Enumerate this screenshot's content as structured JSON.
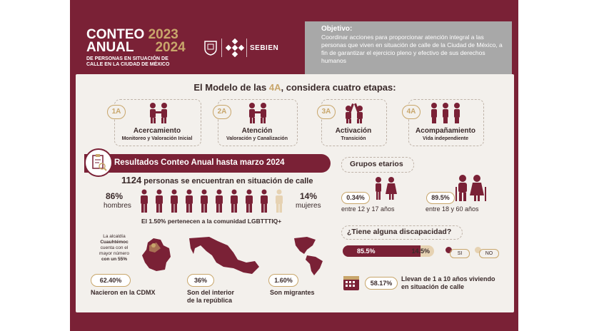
{
  "header": {
    "title_line1": "CONTEO",
    "title_line2": "ANUAL",
    "year1": "2023",
    "year2": "2024",
    "subtitle_line1": "DE PERSONAS EN SITUACIÓN DE",
    "subtitle_line2": "CALLE EN LA CIUDAD DE MÉXICO",
    "logo_text": "SEBIEN"
  },
  "objective": {
    "label": "Objetivo:",
    "text": "Coordinar acciones para proporcionar atención integral a las personas que viven en situación de calle de la Ciudad de México, a fin de garantizar el ejercicio pleno y efectivo de sus derechos humanos"
  },
  "model": {
    "title_pre": "El Modelo de las ",
    "title_hl": "4A",
    "title_post": ", considera cuatro etapas:",
    "stages": [
      {
        "badge": "1A",
        "title": "Acercamiento",
        "sub": "Monitoreo y Valoración Inicial"
      },
      {
        "badge": "2A",
        "title": "Atención",
        "sub": "Valoración y Canalización"
      },
      {
        "badge": "3A",
        "title": "Activación",
        "sub": "Transición"
      },
      {
        "badge": "4A",
        "title": "Acompañamiento",
        "sub": "Vida independiente"
      }
    ]
  },
  "results": {
    "title": "Resultados Conteo Anual hasta marzo 2024",
    "count": "1124",
    "count_text": "personas se encuentran en situación de calle",
    "men_pct": "86%",
    "men_label": "hombres",
    "women_pct": "14%",
    "women_label": "mujeres",
    "lgbt": "El 1.50% pertenecen a la comunidad LGBTTTIQ+",
    "men_share": 0.86
  },
  "map": {
    "note_line1": "La alcaldía",
    "note_line2": "Cuauhtémoc",
    "note_line3": "cuenta con el",
    "note_line4": "mayor número",
    "note_line5": "con un 55%",
    "cdmx_pct": "62.40%",
    "cdmx_label": "Nacieron en la CDMX",
    "interior_pct": "36%",
    "interior_label_1": "Son del interior",
    "interior_label_2": "de la república",
    "migrant_pct": "1.60%",
    "migrant_label": "Son migrantes"
  },
  "age": {
    "title": "Grupos etarios",
    "young_pct": "0.34%",
    "young_label": "entre 12 y 17 años",
    "adult_pct": "89.5%",
    "adult_label": "entre 18 y 60 años"
  },
  "disability": {
    "question": "¿Tiene alguna discapacidad?",
    "yes_pct": "85.5%",
    "no_pct": "14.5%",
    "yes_share": 0.855,
    "legend_yes": "SI",
    "legend_no": "NO"
  },
  "years": {
    "pct": "58.17%",
    "text_line1": "Llevan de 1 a 10 años viviendo",
    "text_line2": "en situación de calle"
  },
  "colors": {
    "maroon": "#7a2136",
    "gold": "#c8a66b",
    "beige": "#e6d2b2",
    "gray_box": "#a8a8a8"
  }
}
